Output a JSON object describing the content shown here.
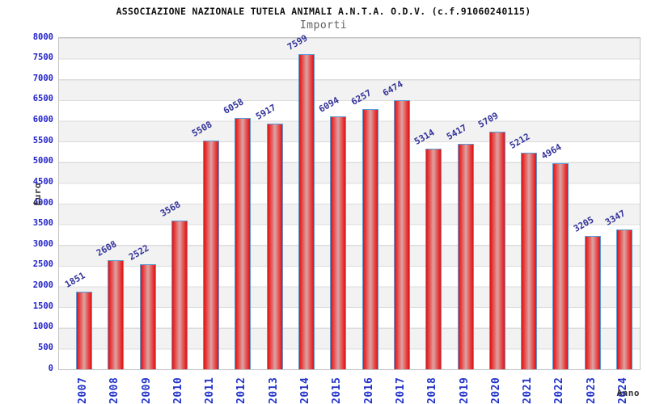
{
  "chart_data": {
    "type": "bar",
    "title": "ASSOCIAZIONE NAZIONALE TUTELA ANIMALI A.N.T.A. O.D.V. (c.f.91060240115)",
    "subtitle": "Importi",
    "ylabel": "Euro",
    "xlabel": "Anno",
    "categories": [
      "2007",
      "2008",
      "2009",
      "2010",
      "2011",
      "2012",
      "2013",
      "2014",
      "2015",
      "2016",
      "2017",
      "2018",
      "2019",
      "2020",
      "2021",
      "2022",
      "2023",
      "2024"
    ],
    "values": [
      1851,
      2608,
      2522,
      3568,
      5508,
      6058,
      5917,
      7599,
      6094,
      6257,
      6474,
      5314,
      5417,
      5709,
      5212,
      4964,
      3205,
      3347
    ],
    "ylim": [
      0,
      8000
    ],
    "ytick_step": 500,
    "yticks": [
      0,
      500,
      1000,
      1500,
      2000,
      2500,
      3000,
      3500,
      4000,
      4500,
      5000,
      5500,
      6000,
      6500,
      7000,
      7500,
      8000
    ],
    "grid": "on",
    "legend": "none",
    "colors": {
      "bar_fill": "#dd1414",
      "bar_fill_center": "#dca4a4",
      "bar_border": "#5b9bd5",
      "value_label": "#333399",
      "tick_label": "#2222cc",
      "band": "#f2f2f2",
      "gridline": "#dcdcdc",
      "title": "#111111",
      "subtitle": "#5f5f5f",
      "axis_title": "#333333"
    }
  }
}
